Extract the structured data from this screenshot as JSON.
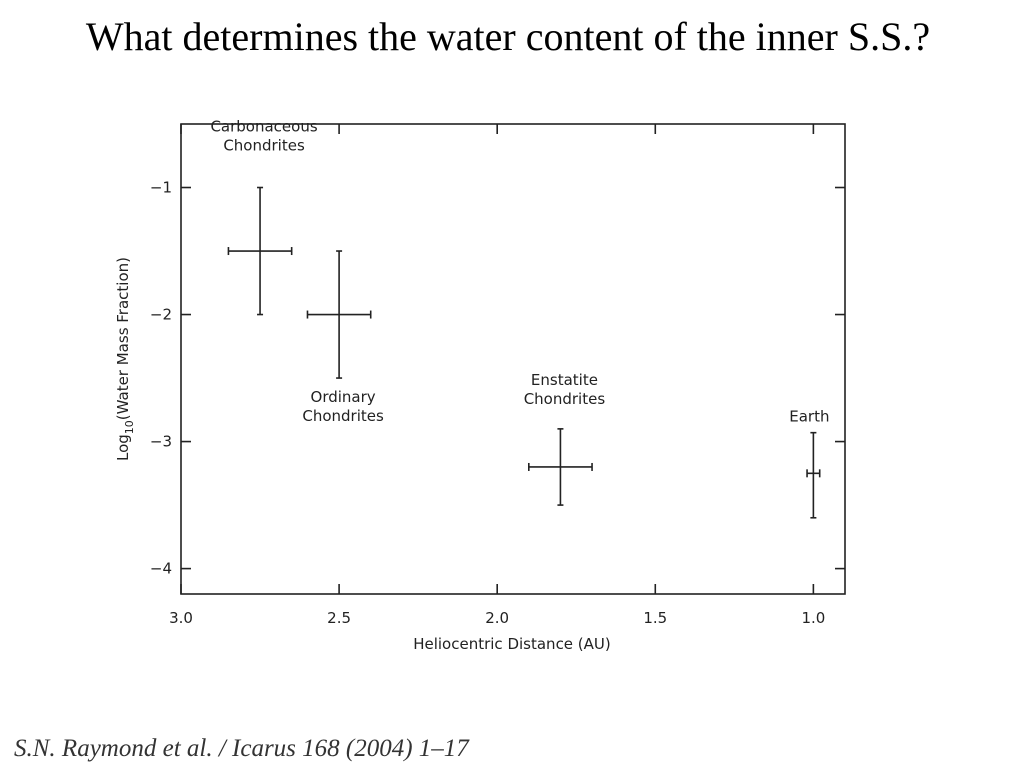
{
  "title": "What determines the water content of the inner S.S.?",
  "footer": "S.N. Raymond et al. / Icarus 168 (2004) 1–17",
  "chart_data": {
    "type": "scatter",
    "xlabel": "Heliocentric Distance (AU)",
    "ylabel_parts": [
      "Log",
      "10",
      "(Water Mass Fraction)"
    ],
    "xlim": [
      3.0,
      0.9
    ],
    "ylim": [
      -4.2,
      -0.5
    ],
    "xticks": [
      {
        "value": 3,
        "label": "3.0"
      },
      2.5,
      {
        "value": 2,
        "label": "2.0"
      },
      1.5,
      {
        "value": 1,
        "label": "1.0"
      }
    ],
    "yticks": [
      {
        "value": -1,
        "label": "−1"
      },
      {
        "value": -2,
        "label": "−2"
      },
      {
        "value": -3,
        "label": "−3"
      },
      {
        "value": -4,
        "label": "−4"
      }
    ],
    "color": "#222222",
    "x": [
      2.75,
      2.5,
      1.8,
      1.0
    ],
    "y": [
      -1.5,
      -2.0,
      -3.2,
      -3.25
    ],
    "xerr": [
      0.1,
      0.1,
      0.1,
      0.02
    ],
    "yerr_minus": [
      0.5,
      0.5,
      0.3,
      0.35
    ],
    "yerr_plus": [
      0.5,
      0.5,
      0.3,
      0.32
    ],
    "labels": [
      [
        "Carbonaceous",
        "Chondrites"
      ],
      [
        "Ordinary",
        "Chondrites"
      ],
      [
        "Enstatite",
        "Chondrites"
      ],
      [
        "Earth"
      ]
    ]
  }
}
